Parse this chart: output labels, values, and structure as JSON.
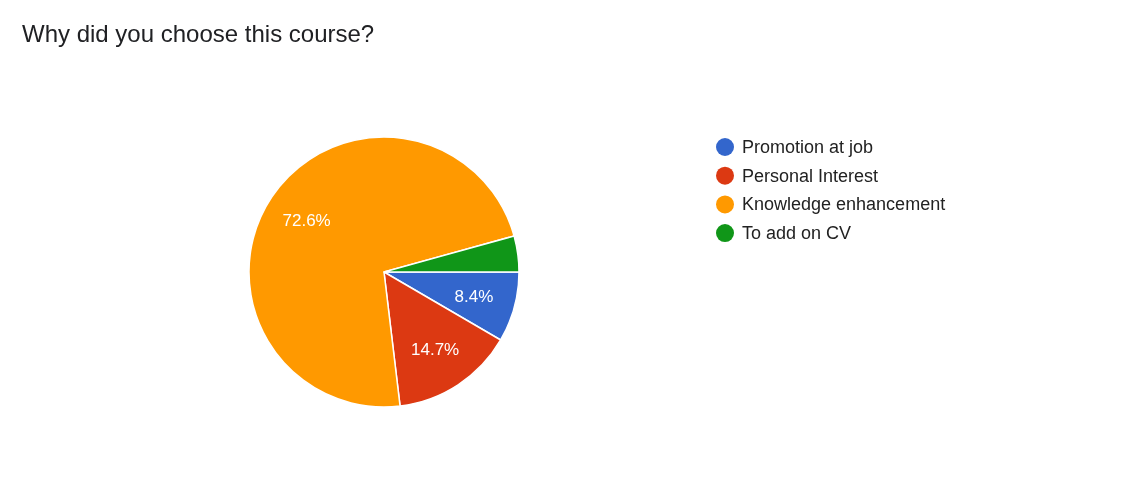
{
  "chart_data": {
    "type": "pie",
    "title": "Why did you choose this course?",
    "categories": [
      "Promotion at job",
      "Personal Interest",
      "Knowledge enhancement",
      "To add on CV"
    ],
    "values": [
      8.4,
      14.7,
      72.6,
      4.3
    ],
    "colors": [
      "#3366cc",
      "#dc3912",
      "#ff9900",
      "#109618"
    ],
    "value_labels": [
      "8.4%",
      "14.7%",
      "72.6%",
      null
    ],
    "legend": "right"
  }
}
